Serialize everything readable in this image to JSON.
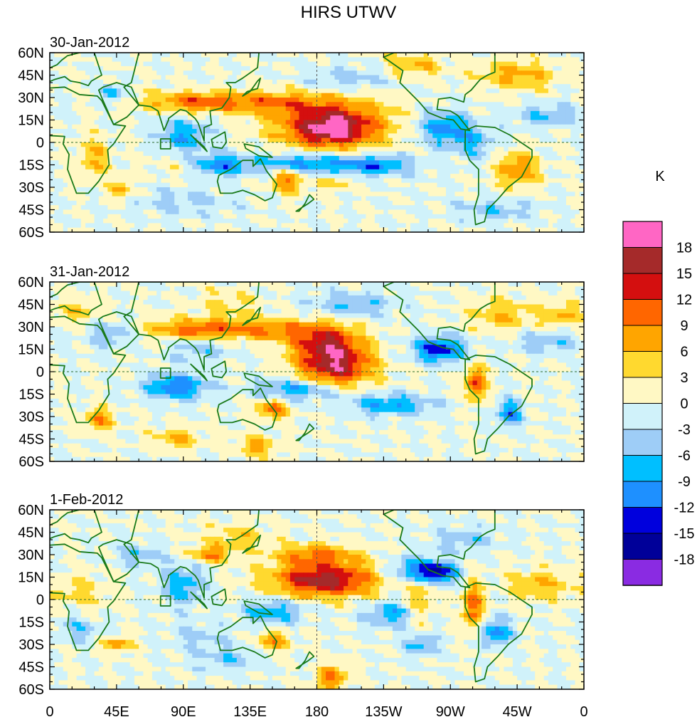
{
  "chart_data": {
    "type": "heatmap",
    "title": "HIRS UTWV",
    "units_label": "K",
    "x_ticks": [
      "0",
      "45E",
      "90E",
      "135E",
      "180",
      "135W",
      "90W",
      "45W",
      "0"
    ],
    "y_ticks": [
      "60N",
      "45N",
      "30N",
      "15N",
      "0",
      "15S",
      "30S",
      "45S",
      "60S"
    ],
    "xlim": [
      0,
      360
    ],
    "ylim": [
      -60,
      60
    ],
    "colorbar": {
      "levels": [
        "18",
        "15",
        "12",
        "9",
        "6",
        "3",
        "0",
        "-3",
        "-6",
        "-9",
        "-12",
        "-15",
        "-18"
      ],
      "colors": [
        "#ff66c4",
        "#a52a2a",
        "#d40f0f",
        "#ff6600",
        "#ffa500",
        "#ffd92f",
        "#fff8c4",
        "#d0f2fa",
        "#9ecdf7",
        "#00bfff",
        "#1e90ff",
        "#0000dd",
        "#000099",
        "#8a2be2"
      ]
    },
    "panels": [
      {
        "label": "30-Jan-2012",
        "features": [
          {
            "lon": 190,
            "lat": 12,
            "amp": 17,
            "sx": 26,
            "sy": 12
          },
          {
            "lon": 190,
            "lat": 8,
            "amp": 6,
            "sx": 12,
            "sy": 5
          },
          {
            "lon": 100,
            "lat": 27,
            "amp": 11,
            "sx": 25,
            "sy": 5
          },
          {
            "lon": 150,
            "lat": 27,
            "amp": 7,
            "sx": 20,
            "sy": 5
          },
          {
            "lon": 245,
            "lat": 52,
            "amp": 6,
            "sx": 15,
            "sy": 6
          },
          {
            "lon": 315,
            "lat": 45,
            "amp": 7,
            "sx": 18,
            "sy": 7
          },
          {
            "lon": 315,
            "lat": -18,
            "amp": 9,
            "sx": 10,
            "sy": 8
          },
          {
            "lon": 160,
            "lat": -25,
            "amp": 10,
            "sx": 8,
            "sy": 6
          },
          {
            "lon": 48,
            "lat": -32,
            "amp": 8,
            "sx": 5,
            "sy": 5
          },
          {
            "lon": 30,
            "lat": -10,
            "amp": 6,
            "sx": 8,
            "sy": 10
          },
          {
            "lon": 100,
            "lat": -15,
            "amp": 4,
            "sx": 20,
            "sy": 5
          },
          {
            "lon": 192,
            "lat": -28,
            "amp": 5,
            "sx": 8,
            "sy": 4
          },
          {
            "lon": 113,
            "lat": -15,
            "amp": -13,
            "sx": 14,
            "sy": 5
          },
          {
            "lon": 90,
            "lat": 5,
            "amp": -9,
            "sx": 12,
            "sy": 8
          },
          {
            "lon": 170,
            "lat": -14,
            "amp": -11,
            "sx": 25,
            "sy": 5
          },
          {
            "lon": 220,
            "lat": -15,
            "amp": -10,
            "sx": 18,
            "sy": 5
          },
          {
            "lon": 265,
            "lat": 10,
            "amp": -10,
            "sx": 12,
            "sy": 8
          },
          {
            "lon": 285,
            "lat": 0,
            "amp": -6,
            "sx": 12,
            "sy": 8
          },
          {
            "lon": 335,
            "lat": 18,
            "amp": -6,
            "sx": 15,
            "sy": 5
          },
          {
            "lon": 42,
            "lat": 33,
            "amp": -9,
            "sx": 5,
            "sy": 4
          },
          {
            "lon": 200,
            "lat": 42,
            "amp": -5,
            "sx": 20,
            "sy": 6
          },
          {
            "lon": 300,
            "lat": -45,
            "amp": -5,
            "sx": 20,
            "sy": 5
          },
          {
            "lon": 90,
            "lat": -40,
            "amp": -4,
            "sx": 25,
            "sy": 6
          }
        ]
      },
      {
        "label": "31-Jan-2012",
        "features": [
          {
            "lon": 192,
            "lat": 5,
            "amp": 17,
            "sx": 18,
            "sy": 11
          },
          {
            "lon": 185,
            "lat": 22,
            "amp": 10,
            "sx": 16,
            "sy": 8
          },
          {
            "lon": 100,
            "lat": 28,
            "amp": 11,
            "sx": 22,
            "sy": 5
          },
          {
            "lon": 150,
            "lat": 28,
            "amp": 8,
            "sx": 20,
            "sy": 5
          },
          {
            "lon": 287,
            "lat": -8,
            "amp": 12,
            "sx": 5,
            "sy": 8
          },
          {
            "lon": 305,
            "lat": 38,
            "amp": 6,
            "sx": 15,
            "sy": 8
          },
          {
            "lon": 345,
            "lat": 38,
            "amp": 6,
            "sx": 10,
            "sy": 6
          },
          {
            "lon": 150,
            "lat": -25,
            "amp": 10,
            "sx": 8,
            "sy": 5
          },
          {
            "lon": 33,
            "lat": -32,
            "amp": 9,
            "sx": 7,
            "sy": 5
          },
          {
            "lon": 120,
            "lat": 45,
            "amp": 4,
            "sx": 15,
            "sy": 7
          },
          {
            "lon": 85,
            "lat": -45,
            "amp": 6,
            "sx": 12,
            "sy": 5
          },
          {
            "lon": 140,
            "lat": -50,
            "amp": 7,
            "sx": 10,
            "sy": 5
          },
          {
            "lon": 20,
            "lat": 40,
            "amp": 5,
            "sx": 10,
            "sy": 6
          },
          {
            "lon": 85,
            "lat": -10,
            "amp": -12,
            "sx": 14,
            "sy": 6
          },
          {
            "lon": 262,
            "lat": 15,
            "amp": -14,
            "sx": 12,
            "sy": 6
          },
          {
            "lon": 168,
            "lat": -12,
            "amp": -10,
            "sx": 20,
            "sy": 5
          },
          {
            "lon": 230,
            "lat": -22,
            "amp": -9,
            "sx": 20,
            "sy": 5
          },
          {
            "lon": 310,
            "lat": -28,
            "amp": -11,
            "sx": 6,
            "sy": 6
          },
          {
            "lon": 205,
            "lat": 45,
            "amp": -6,
            "sx": 20,
            "sy": 6
          },
          {
            "lon": 40,
            "lat": 25,
            "amp": -6,
            "sx": 10,
            "sy": 6
          },
          {
            "lon": 335,
            "lat": 20,
            "amp": -6,
            "sx": 15,
            "sy": 5
          },
          {
            "lon": 100,
            "lat": 15,
            "amp": -5,
            "sx": 15,
            "sy": 6
          }
        ]
      },
      {
        "label": "1-Feb-2012",
        "features": [
          {
            "lon": 185,
            "lat": 13,
            "amp": 17,
            "sx": 25,
            "sy": 8
          },
          {
            "lon": 180,
            "lat": 30,
            "amp": 9,
            "sx": 20,
            "sy": 5
          },
          {
            "lon": 108,
            "lat": 30,
            "amp": 9,
            "sx": 10,
            "sy": 4
          },
          {
            "lon": 285,
            "lat": -5,
            "amp": 11,
            "sx": 5,
            "sy": 12
          },
          {
            "lon": 190,
            "lat": -52,
            "amp": 10,
            "sx": 7,
            "sy": 6
          },
          {
            "lon": 150,
            "lat": -28,
            "amp": 8,
            "sx": 8,
            "sy": 5
          },
          {
            "lon": 45,
            "lat": -30,
            "amp": 8,
            "sx": 7,
            "sy": 4
          },
          {
            "lon": 250,
            "lat": 0,
            "amp": 6,
            "sx": 6,
            "sy": 12
          },
          {
            "lon": 330,
            "lat": 10,
            "amp": 6,
            "sx": 15,
            "sy": 7
          },
          {
            "lon": 125,
            "lat": 42,
            "amp": 5,
            "sx": 15,
            "sy": 6
          },
          {
            "lon": 20,
            "lat": 5,
            "amp": 4,
            "sx": 15,
            "sy": 8
          },
          {
            "lon": 262,
            "lat": 18,
            "amp": -14,
            "sx": 10,
            "sy": 5
          },
          {
            "lon": 245,
            "lat": 20,
            "amp": -9,
            "sx": 12,
            "sy": 6
          },
          {
            "lon": 90,
            "lat": 10,
            "amp": -8,
            "sx": 10,
            "sy": 10
          },
          {
            "lon": 150,
            "lat": -8,
            "amp": -8,
            "sx": 15,
            "sy": 6
          },
          {
            "lon": 230,
            "lat": -10,
            "amp": -8,
            "sx": 12,
            "sy": 6
          },
          {
            "lon": 250,
            "lat": -30,
            "amp": -8,
            "sx": 8,
            "sy": 5
          },
          {
            "lon": 300,
            "lat": -22,
            "amp": -10,
            "sx": 8,
            "sy": 6
          },
          {
            "lon": 60,
            "lat": 30,
            "amp": -6,
            "sx": 10,
            "sy": 5
          },
          {
            "lon": 20,
            "lat": -20,
            "amp": -5,
            "sx": 10,
            "sy": 6
          },
          {
            "lon": 100,
            "lat": -25,
            "amp": -4,
            "sx": 15,
            "sy": 6
          },
          {
            "lon": 280,
            "lat": 40,
            "amp": -5,
            "sx": 15,
            "sy": 6
          },
          {
            "lon": 120,
            "lat": -40,
            "amp": -5,
            "sx": 15,
            "sy": 6
          }
        ]
      }
    ]
  }
}
